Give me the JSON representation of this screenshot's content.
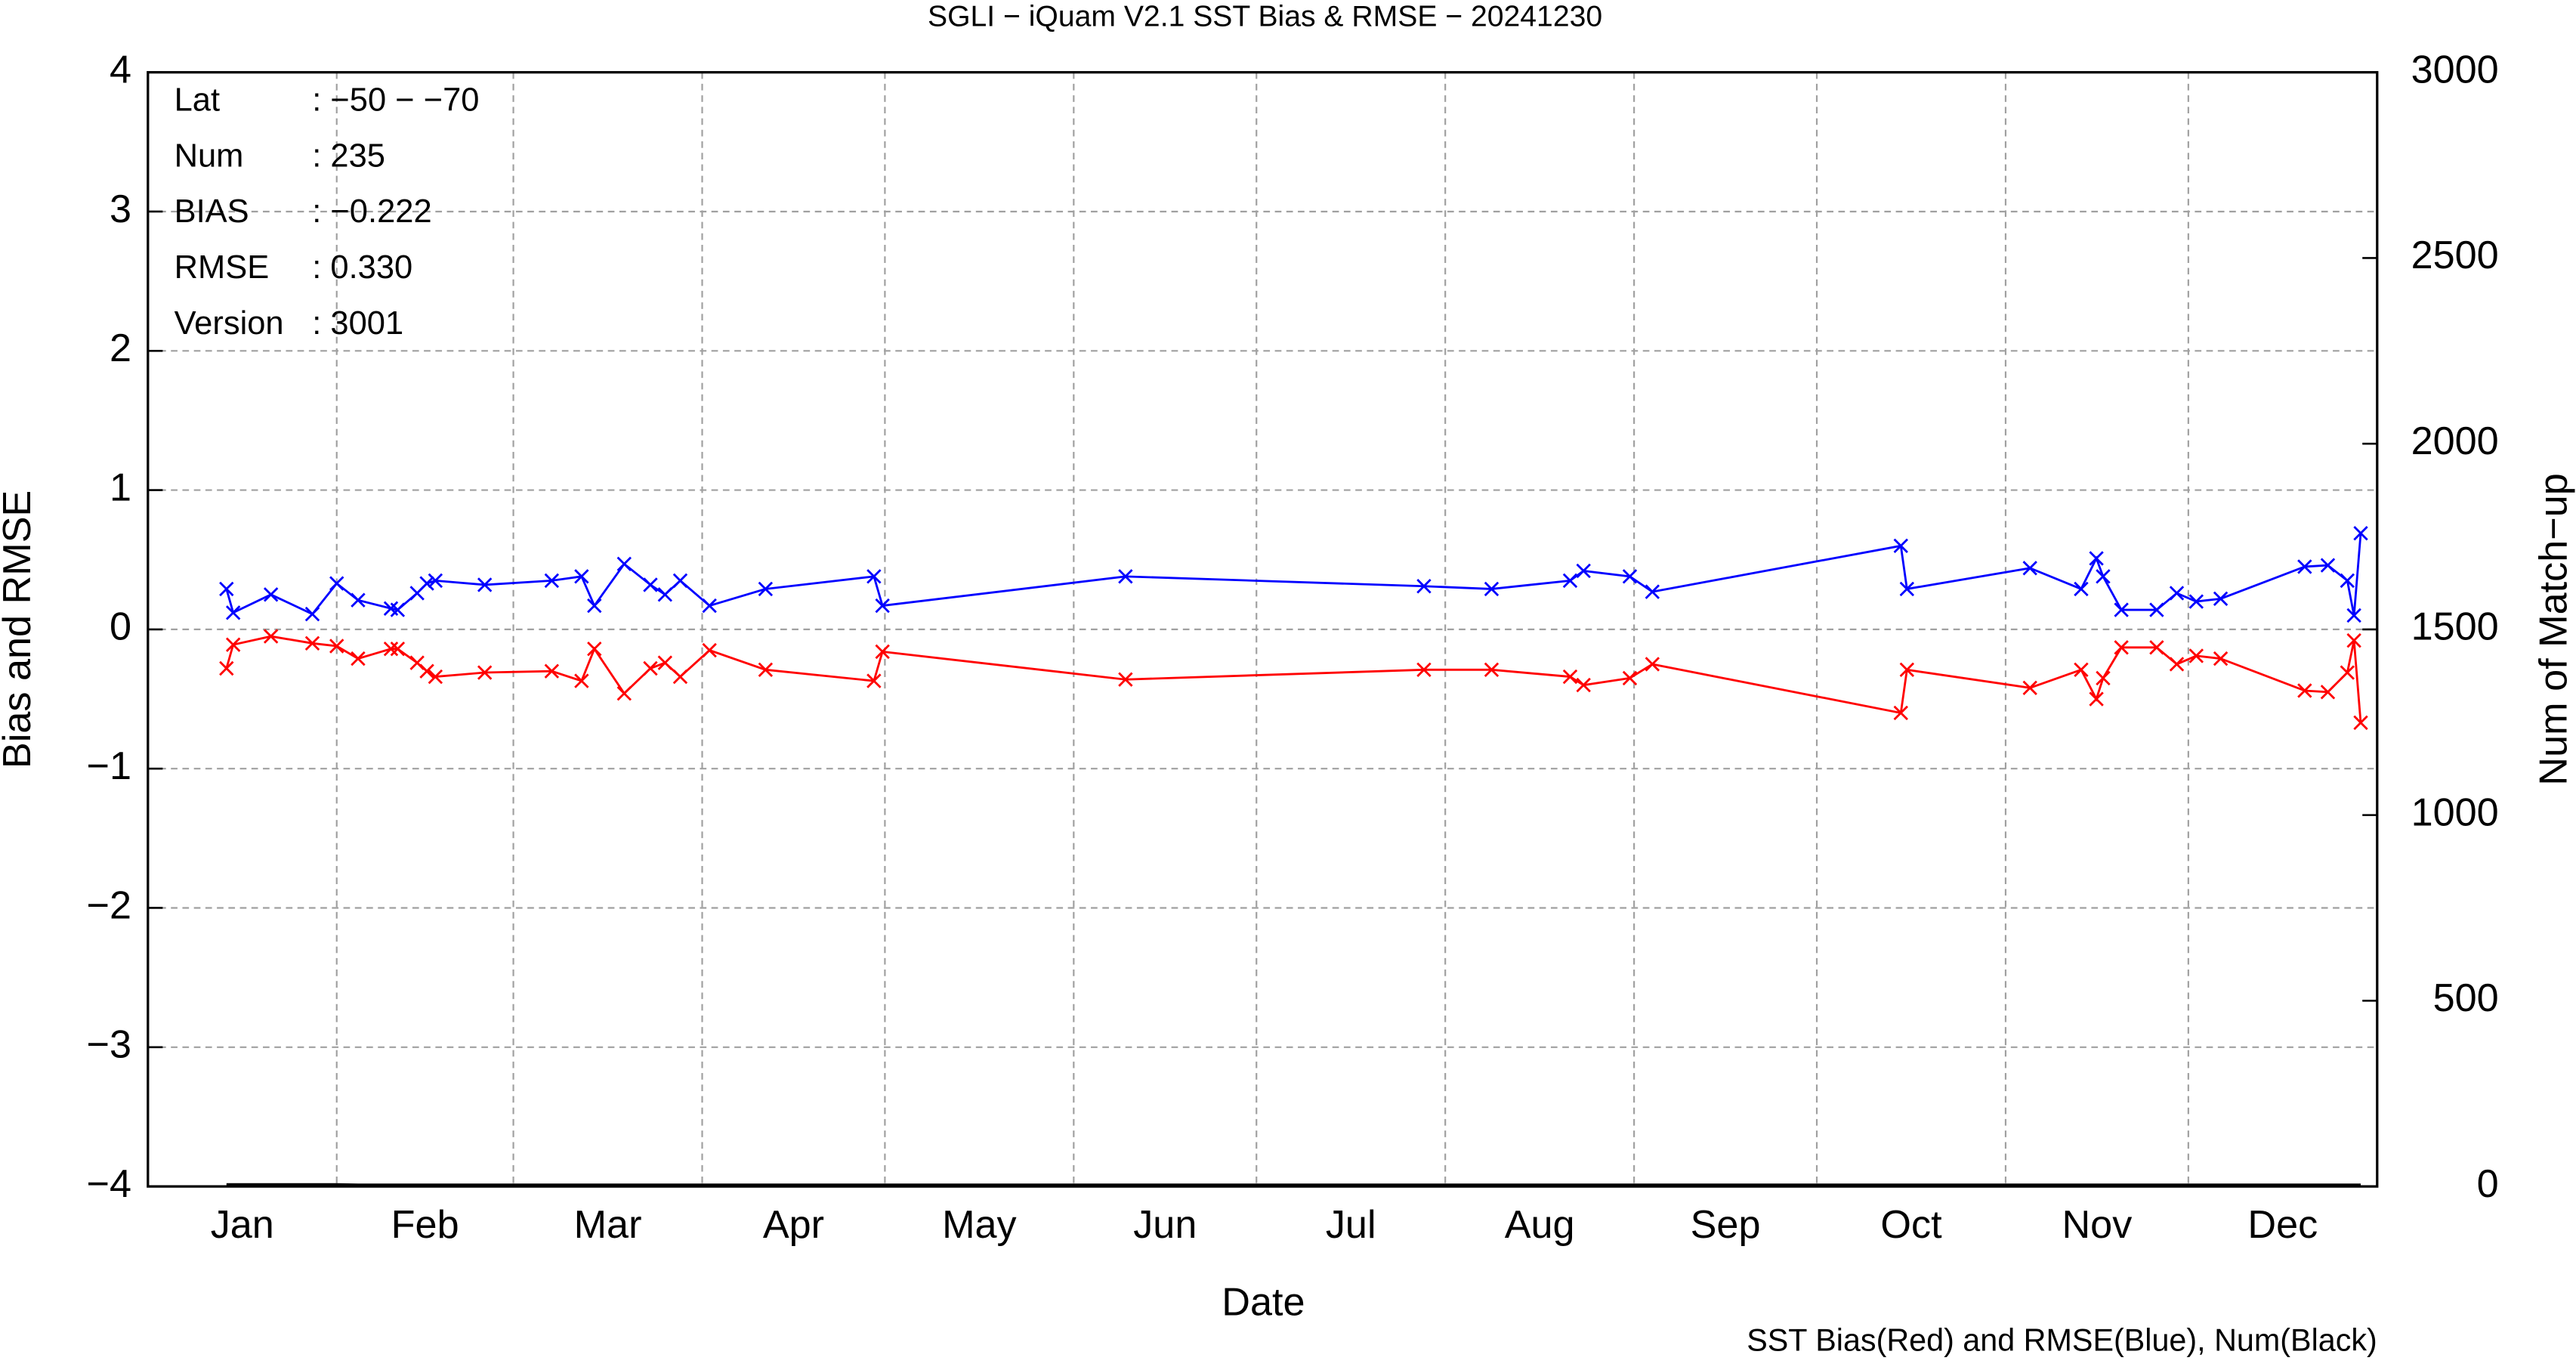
{
  "chart_data": {
    "type": "line",
    "title": "SGLI − iQuam V2.1 SST Bias & RMSE  − 20241230",
    "xlabel": "Date",
    "ylabel": "Bias and RMSE",
    "y2label": "Num of Match−up",
    "note": "SST Bias(Red) and RMSE(Blue), Num(Black)",
    "info": [
      {
        "label": "Lat",
        "value": ": −50 − −70"
      },
      {
        "label": "Num",
        "value": ": 235"
      },
      {
        "label": "BIAS",
        "value": ": −0.222"
      },
      {
        "label": "RMSE",
        "value": ": 0.330"
      },
      {
        "label": "Version",
        "value": ": 3001"
      }
    ],
    "x": [
      12.9,
      14.0,
      20.2,
      27.0,
      31.0,
      34.5,
      39.9,
      41.0,
      44.2,
      45.8,
      47.2,
      55.3,
      66.3,
      71.2,
      73.3,
      78.2,
      82.5,
      84.9,
      87.4,
      92.2,
      101.4,
      119.2,
      120.6,
      160.5,
      209.5,
      220.6,
      233.5,
      235.7,
      243.3,
      247.0,
      287.8,
      288.8,
      309.0,
      317.4,
      319.9,
      321.0,
      324.0,
      329.8,
      333.1,
      336.3,
      340.3,
      354.1,
      357.9,
      361.1,
      362.2,
      363.3
    ],
    "series": [
      {
        "color": "#0000ff",
        "marker": "x",
        "values": [
          0.29,
          0.12,
          0.25,
          0.11,
          0.33,
          0.21,
          0.15,
          0.14,
          0.26,
          0.33,
          0.35,
          0.32,
          0.35,
          0.38,
          0.17,
          0.47,
          0.32,
          0.25,
          0.35,
          0.17,
          0.29,
          0.38,
          0.17,
          0.38,
          0.31,
          0.29,
          0.35,
          0.42,
          0.38,
          0.27,
          0.6,
          0.29,
          0.44,
          0.29,
          0.51,
          0.38,
          0.14,
          0.14,
          0.26,
          0.2,
          0.22,
          0.45,
          0.46,
          0.35,
          0.1,
          0.69
        ]
      },
      {
        "color": "#ff0000",
        "marker": "x",
        "values": [
          -0.28,
          -0.11,
          -0.05,
          -0.1,
          -0.12,
          -0.21,
          -0.14,
          -0.14,
          -0.24,
          -0.3,
          -0.34,
          -0.31,
          -0.3,
          -0.37,
          -0.14,
          -0.46,
          -0.28,
          -0.24,
          -0.34,
          -0.15,
          -0.29,
          -0.37,
          -0.16,
          -0.36,
          -0.29,
          -0.29,
          -0.34,
          -0.4,
          -0.35,
          -0.25,
          -0.6,
          -0.29,
          -0.42,
          -0.29,
          -0.5,
          -0.35,
          -0.13,
          -0.13,
          -0.25,
          -0.19,
          -0.21,
          -0.44,
          -0.45,
          -0.31,
          -0.08,
          -0.67
        ]
      },
      {
        "color": "#000000",
        "axis": "y2",
        "values": [
          6,
          6,
          6,
          6,
          6,
          5,
          5,
          5,
          5,
          5,
          5,
          5,
          5,
          5,
          5,
          5,
          5,
          5,
          5,
          5,
          5,
          5,
          5,
          5,
          5,
          5,
          5,
          5,
          5,
          5,
          5,
          5,
          5,
          5,
          5,
          5,
          5,
          5,
          5,
          5,
          5,
          5,
          5,
          5,
          5,
          5
        ]
      }
    ],
    "xlim": [
      0,
      366
    ],
    "xticks": [
      {
        "value": 15.5,
        "label": "Jan"
      },
      {
        "value": 45.5,
        "label": "Feb"
      },
      {
        "value": 75.5,
        "label": "Mar"
      },
      {
        "value": 106,
        "label": "Apr"
      },
      {
        "value": 136.5,
        "label": "May"
      },
      {
        "value": 167,
        "label": "Jun"
      },
      {
        "value": 197.5,
        "label": "Jul"
      },
      {
        "value": 228.5,
        "label": "Aug"
      },
      {
        "value": 259,
        "label": "Sep"
      },
      {
        "value": 289.5,
        "label": "Oct"
      },
      {
        "value": 320,
        "label": "Nov"
      },
      {
        "value": 350.5,
        "label": "Dec"
      }
    ],
    "xgrid": [
      31,
      60,
      91,
      121,
      152,
      182,
      213,
      244,
      274,
      305,
      335
    ],
    "ylim": [
      -4,
      4
    ],
    "yticks": [
      {
        "value": -4,
        "label": "−4"
      },
      {
        "value": -3,
        "label": "−3"
      },
      {
        "value": -2,
        "label": "−2"
      },
      {
        "value": -1,
        "label": "−1"
      },
      0,
      1,
      2,
      3,
      4
    ],
    "y2lim": [
      0,
      3000
    ],
    "y2ticks": [
      0,
      500,
      1000,
      1500,
      2000,
      2500,
      3000
    ],
    "grid": true
  }
}
